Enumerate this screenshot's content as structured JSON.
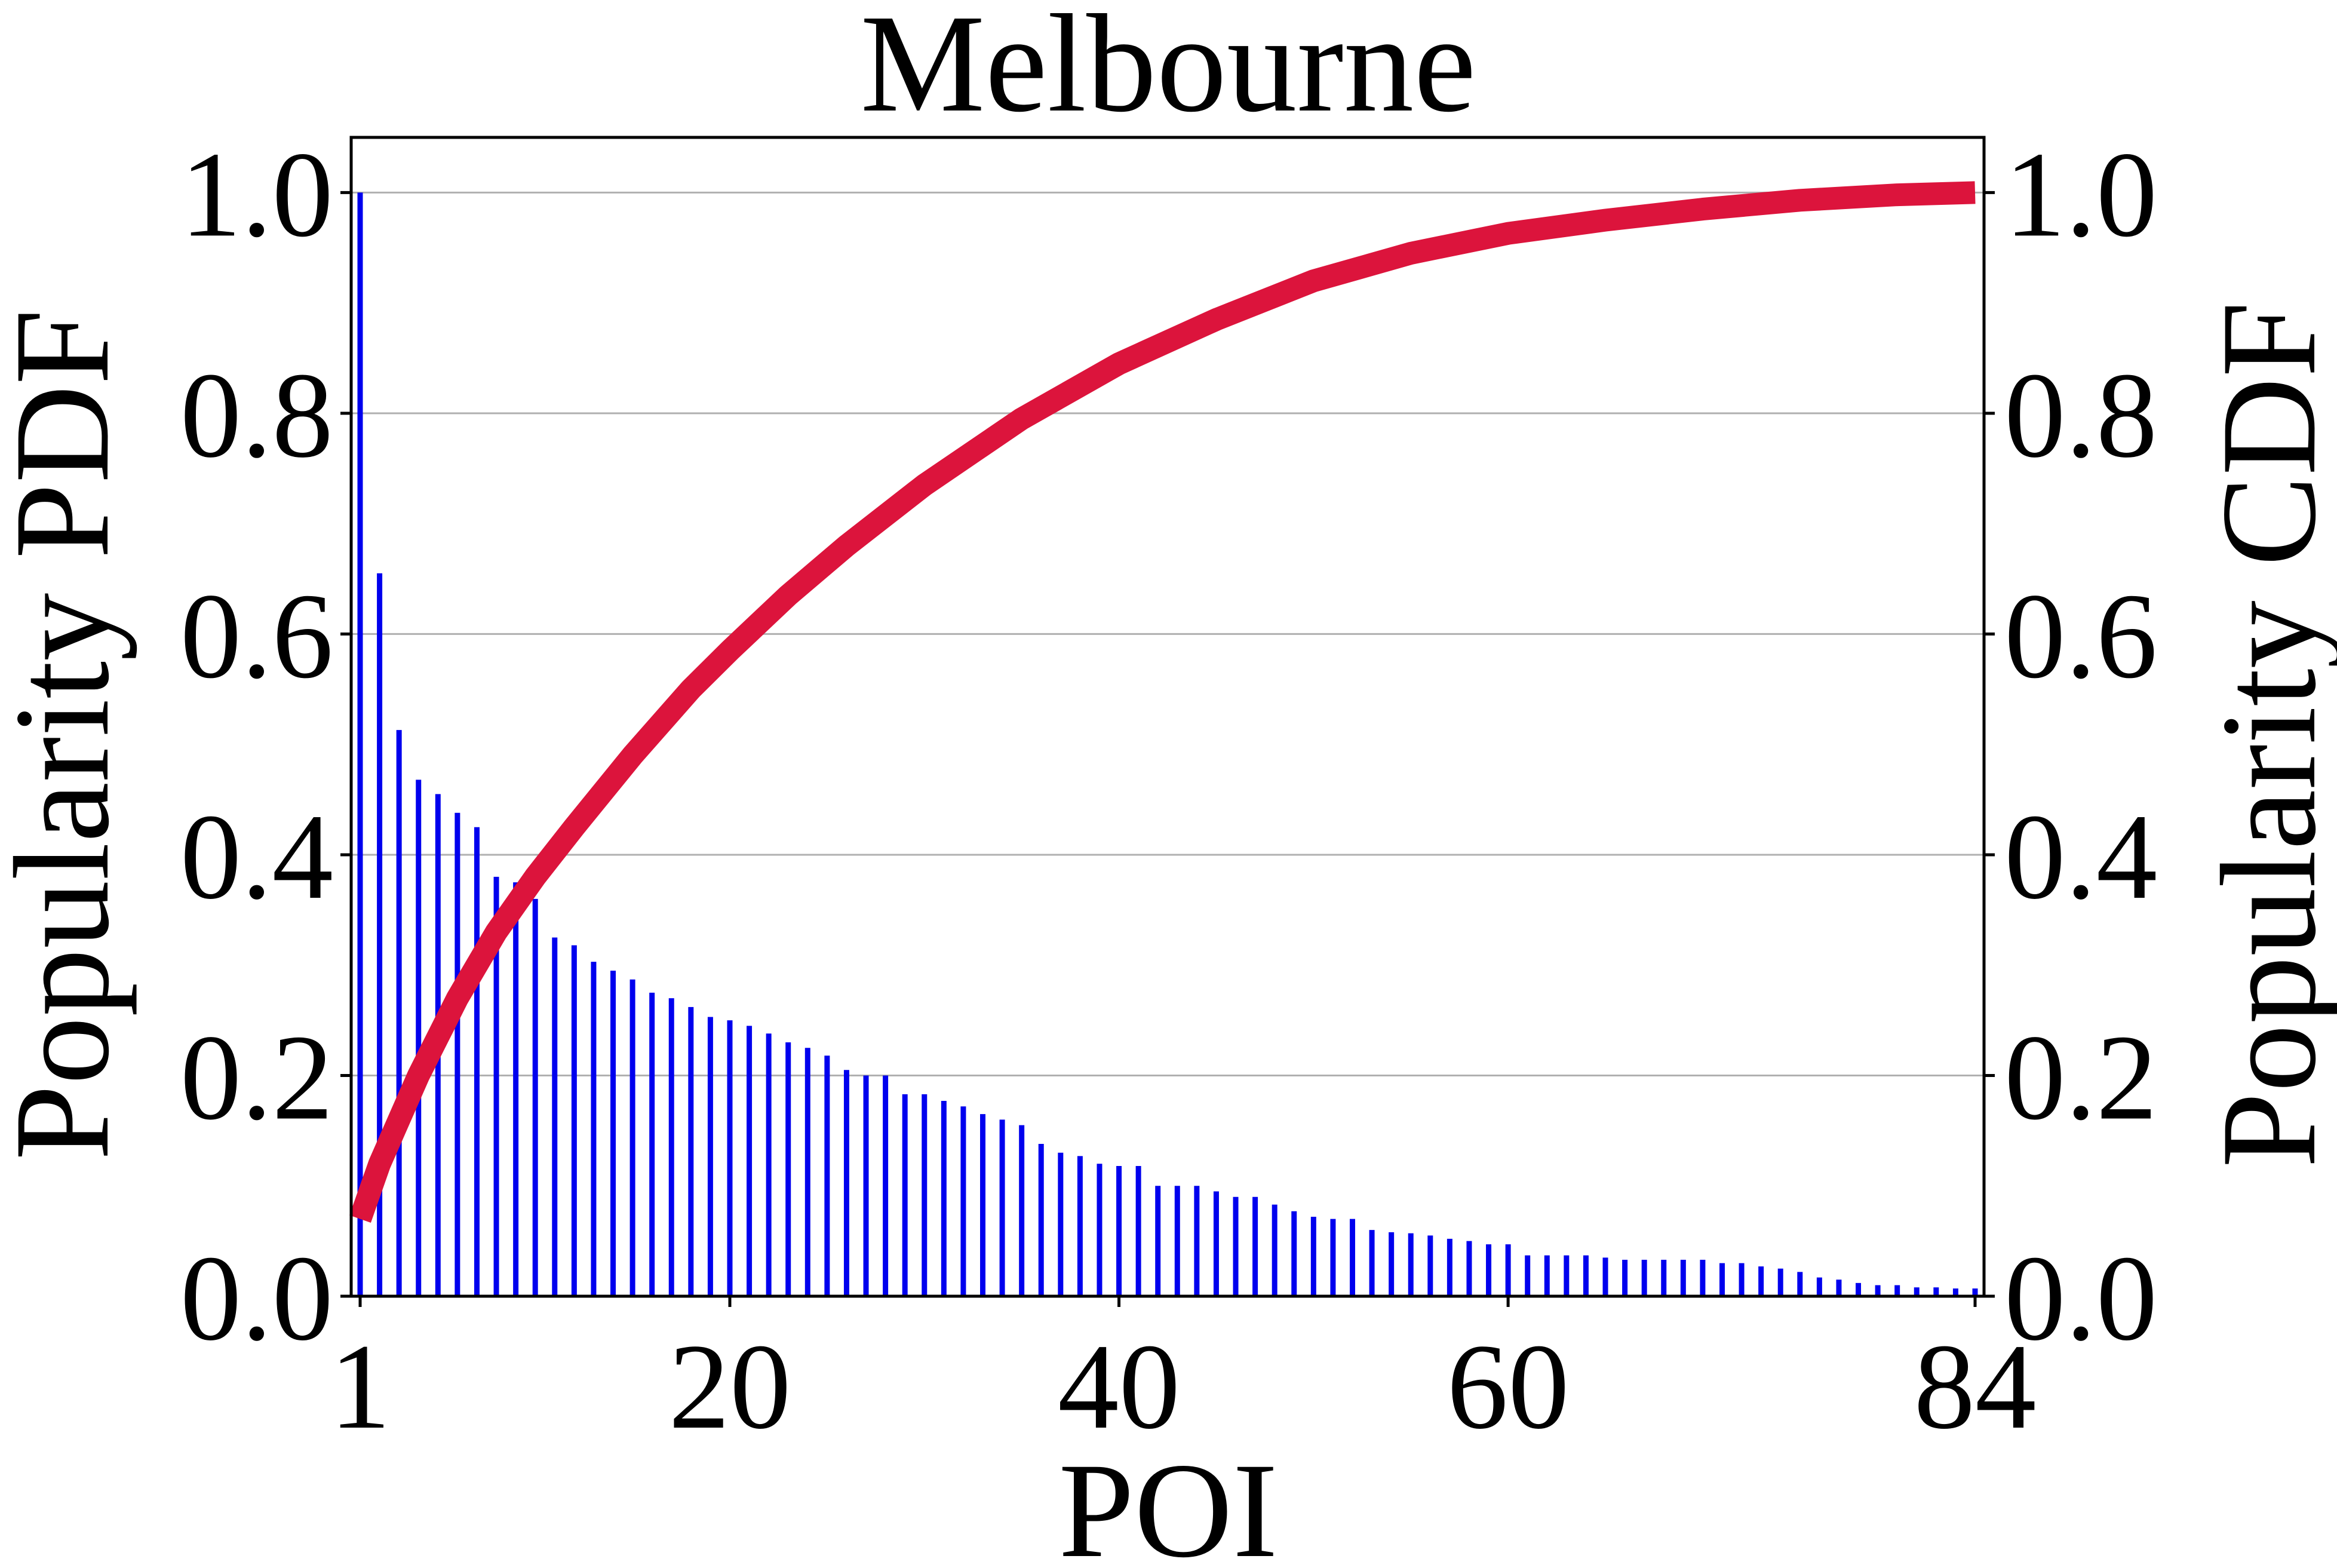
{
  "chart_data": {
    "type": "bar",
    "title": "Melbourne",
    "xlabel": "POI",
    "ylabel_left": "Popularity PDF",
    "ylabel_right": "Popularity CDF",
    "xlim": [
      1,
      84
    ],
    "xticks": [
      {
        "value": 1,
        "label": "1"
      },
      {
        "value": 20,
        "label": "20"
      },
      {
        "value": 40,
        "label": "40"
      },
      {
        "value": 60,
        "label": "60"
      },
      {
        "value": 84,
        "label": "84"
      }
    ],
    "ylim_left": [
      0,
      1.05
    ],
    "ylim_right": [
      0,
      1.05
    ],
    "yticks": [
      {
        "value": 0.0,
        "label": "0.0"
      },
      {
        "value": 0.2,
        "label": "0.2"
      },
      {
        "value": 0.4,
        "label": "0.4"
      },
      {
        "value": 0.6,
        "label": "0.6"
      },
      {
        "value": 0.8,
        "label": "0.8"
      },
      {
        "value": 1.0,
        "label": "1.0"
      }
    ],
    "grid": "horizontal",
    "series": [
      {
        "kind": "bar",
        "axis": "left",
        "color": "#0000ee",
        "x": [
          1,
          2,
          3,
          4,
          5,
          6,
          7,
          8,
          9,
          10,
          11,
          12,
          13,
          14,
          15,
          16,
          17,
          18,
          19,
          20,
          21,
          22,
          23,
          24,
          25,
          26,
          27,
          28,
          29,
          30,
          31,
          32,
          33,
          34,
          35,
          36,
          37,
          38,
          39,
          40,
          41,
          42,
          43,
          44,
          45,
          46,
          47,
          48,
          49,
          50,
          51,
          52,
          53,
          54,
          55,
          56,
          57,
          58,
          59,
          60,
          61,
          62,
          63,
          64,
          65,
          66,
          67,
          68,
          69,
          70,
          71,
          72,
          73,
          74,
          75,
          76,
          77,
          78,
          79,
          80,
          81,
          82,
          83,
          84
        ],
        "values": [
          1.0,
          0.655,
          0.513,
          0.468,
          0.455,
          0.438,
          0.425,
          0.38,
          0.375,
          0.36,
          0.325,
          0.318,
          0.303,
          0.295,
          0.287,
          0.275,
          0.27,
          0.262,
          0.253,
          0.25,
          0.245,
          0.238,
          0.23,
          0.225,
          0.218,
          0.205,
          0.2,
          0.2,
          0.183,
          0.183,
          0.177,
          0.172,
          0.165,
          0.16,
          0.155,
          0.138,
          0.13,
          0.127,
          0.12,
          0.118,
          0.118,
          0.1,
          0.1,
          0.1,
          0.095,
          0.09,
          0.09,
          0.083,
          0.077,
          0.072,
          0.07,
          0.07,
          0.06,
          0.058,
          0.057,
          0.055,
          0.052,
          0.05,
          0.047,
          0.047,
          0.037,
          0.037,
          0.037,
          0.037,
          0.035,
          0.033,
          0.033,
          0.033,
          0.033,
          0.033,
          0.03,
          0.03,
          0.027,
          0.025,
          0.022,
          0.017,
          0.015,
          0.012,
          0.01,
          0.01,
          0.008,
          0.008,
          0.007,
          0.007
        ]
      },
      {
        "kind": "line",
        "axis": "right",
        "color": "#dc143c",
        "x": [
          1,
          2,
          4,
          6,
          8,
          10,
          12,
          15,
          18,
          20,
          23,
          26,
          30,
          35,
          40,
          45,
          50,
          55,
          60,
          65,
          70,
          75,
          80,
          84
        ],
        "values": [
          0.07,
          0.12,
          0.2,
          0.27,
          0.33,
          0.38,
          0.425,
          0.49,
          0.55,
          0.585,
          0.635,
          0.68,
          0.735,
          0.795,
          0.845,
          0.885,
          0.92,
          0.945,
          0.963,
          0.975,
          0.985,
          0.993,
          0.998,
          1.0
        ]
      }
    ]
  }
}
